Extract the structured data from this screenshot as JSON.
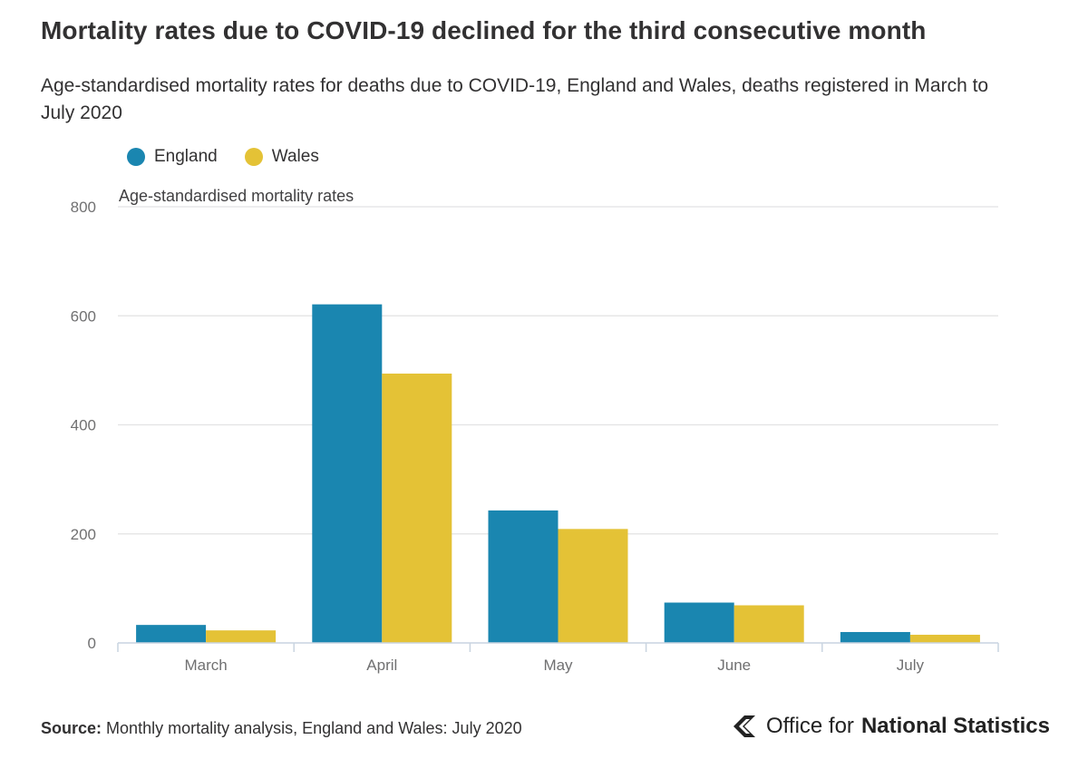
{
  "title": "Mortality rates due to COVID-19 declined for the third consecutive month",
  "subtitle": "Age-standardised mortality rates for deaths due to COVID-19, England and Wales, deaths registered in March to July 2020",
  "source_label": "Source:",
  "source_text": "Monthly mortality analysis, England and Wales: July 2020",
  "brand": {
    "prefix": "Office for",
    "name": "National Statistics",
    "icon": "ons-logo-icon"
  },
  "colors": {
    "england": "#1a86b0",
    "wales": "#e4c236",
    "grid": "#e2e2e3",
    "axis": "#c9d4e0"
  },
  "chart_data": {
    "type": "bar",
    "title": "Mortality rates due to COVID-19 declined for the third consecutive month",
    "subtitle": "Age-standardised mortality rates for deaths due to COVID-19, England and Wales, deaths registered in March to July 2020",
    "xlabel": "",
    "ylabel": "Age-standardised mortality rates",
    "ylim": [
      0,
      800
    ],
    "yticks": [
      0,
      200,
      400,
      600,
      800
    ],
    "categories": [
      "March",
      "April",
      "May",
      "June",
      "July"
    ],
    "legend_position": "top-left",
    "grid": true,
    "series": [
      {
        "name": "England",
        "values": [
          33,
          621,
          243,
          74,
          20
        ]
      },
      {
        "name": "Wales",
        "values": [
          23,
          494,
          209,
          69,
          15
        ]
      }
    ]
  }
}
